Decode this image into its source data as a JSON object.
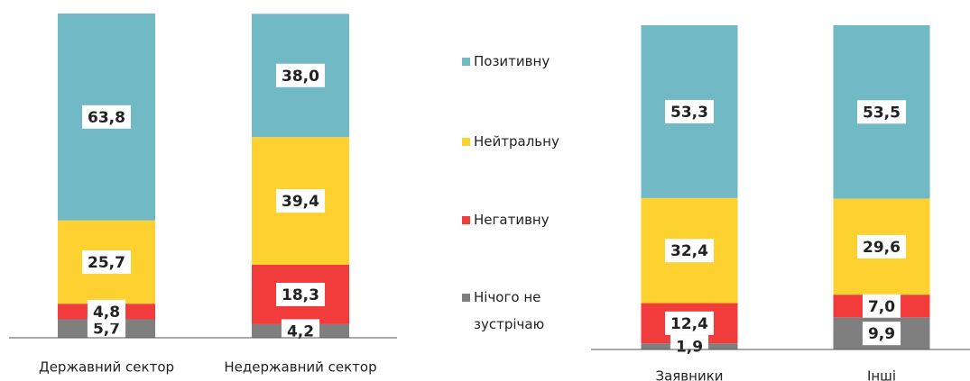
{
  "chart_data": [
    {
      "type": "bar",
      "stacked": true,
      "categories": [
        "Державний сектор",
        "Недержавний сектор"
      ],
      "ylim": [
        0,
        100
      ],
      "series": [
        {
          "name": "Позитивну",
          "color": "#72b9c6",
          "values": [
            63.8,
            38.0
          ],
          "value_labels": [
            "63,8",
            "38,0"
          ]
        },
        {
          "name": "Нейтральну",
          "color": "#fdd130",
          "values": [
            25.7,
            39.4
          ],
          "value_labels": [
            "25,7",
            "39,4"
          ]
        },
        {
          "name": "Негативну",
          "color": "#f23b3b",
          "values": [
            4.8,
            18.3
          ],
          "value_labels": [
            "4,8",
            "18,3"
          ]
        },
        {
          "name": "Нічого не зустрічаю",
          "color": "#7f7f7f",
          "values": [
            5.7,
            4.2
          ],
          "value_labels": [
            "5,7",
            "4,2"
          ]
        }
      ]
    },
    {
      "type": "bar",
      "stacked": true,
      "categories": [
        "Заявники",
        "Інші"
      ],
      "ylim": [
        0,
        100
      ],
      "series": [
        {
          "color": "#72b9c6",
          "values": [
            53.3,
            53.5
          ],
          "value_labels": [
            "53,3",
            "53,5"
          ]
        },
        {
          "color": "#fdd130",
          "values": [
            32.4,
            29.6
          ],
          "value_labels": [
            "32,4",
            "29,6"
          ]
        },
        {
          "color": "#f23b3b",
          "values": [
            12.4,
            7.0
          ],
          "value_labels": [
            "12,4",
            "7,0"
          ]
        },
        {
          "color": "#7f7f7f",
          "values": [
            1.9,
            9.9
          ],
          "value_labels": [
            "1,9",
            "9,9"
          ]
        }
      ]
    }
  ]
}
